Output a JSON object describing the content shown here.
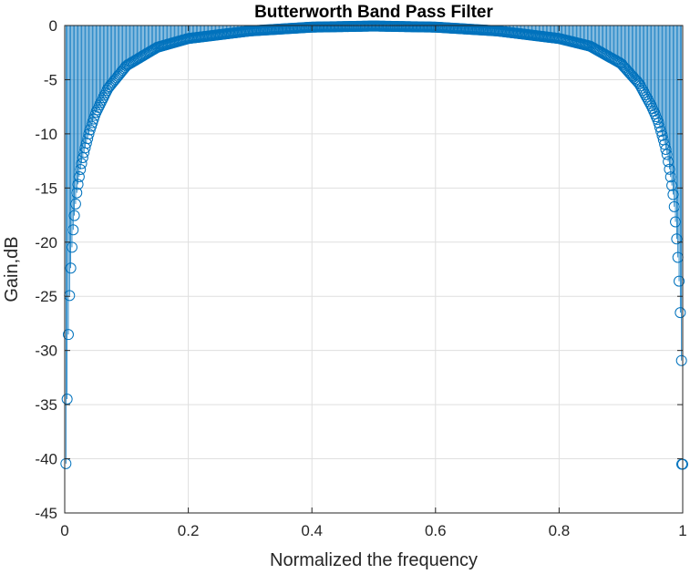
{
  "chart_data": {
    "type": "stem",
    "title": "Butterworth Band Pass Filter",
    "xlabel": "Normalized the frequency",
    "ylabel": "Gain,dB",
    "xlim": [
      0,
      1
    ],
    "ylim": [
      -45,
      0
    ],
    "xticks": [
      0,
      0.2,
      0.4,
      0.6,
      0.8,
      1
    ],
    "xtick_labels": [
      "0",
      "0.2",
      "0.4",
      "0.6",
      "0.8",
      "1"
    ],
    "yticks": [
      0,
      -5,
      -10,
      -15,
      -20,
      -25,
      -30,
      -35,
      -40,
      -45
    ],
    "ytick_labels": [
      "0",
      "-5",
      "-10",
      "-15",
      "-20",
      "-25",
      "-30",
      "-35",
      "-40",
      "-45"
    ],
    "grid": true,
    "series_color": "#0072BD",
    "marker": "circle-open",
    "num_points": 512,
    "x": [
      0.004,
      0.006,
      0.008,
      0.01,
      0.012,
      0.014,
      0.016,
      0.02,
      0.025,
      0.03,
      0.04,
      0.05,
      0.07,
      0.1,
      0.15,
      0.2,
      0.3,
      0.4,
      0.5,
      0.6,
      0.7,
      0.8,
      0.85,
      0.9,
      0.93,
      0.95,
      0.96,
      0.97,
      0.975,
      0.98,
      0.984,
      0.986,
      0.988,
      0.99,
      0.992,
      0.994,
      0.996,
      0.998
    ],
    "y": [
      -34.2,
      -28.1,
      -24.6,
      -22.1,
      -20.2,
      -18.6,
      -17.3,
      -15.2,
      -13.4,
      -12.0,
      -9.8,
      -8.1,
      -5.8,
      -3.7,
      -2.0,
      -1.2,
      -0.5,
      -0.15,
      -0.05,
      -0.15,
      -0.5,
      -1.2,
      -1.9,
      -3.5,
      -5.4,
      -7.5,
      -8.8,
      -10.8,
      -12.0,
      -13.8,
      -15.4,
      -16.5,
      -17.9,
      -19.5,
      -21.2,
      -23.4,
      -26.3,
      -30.7
    ],
    "last_point": {
      "x": 1.0,
      "y": -40.5
    }
  }
}
